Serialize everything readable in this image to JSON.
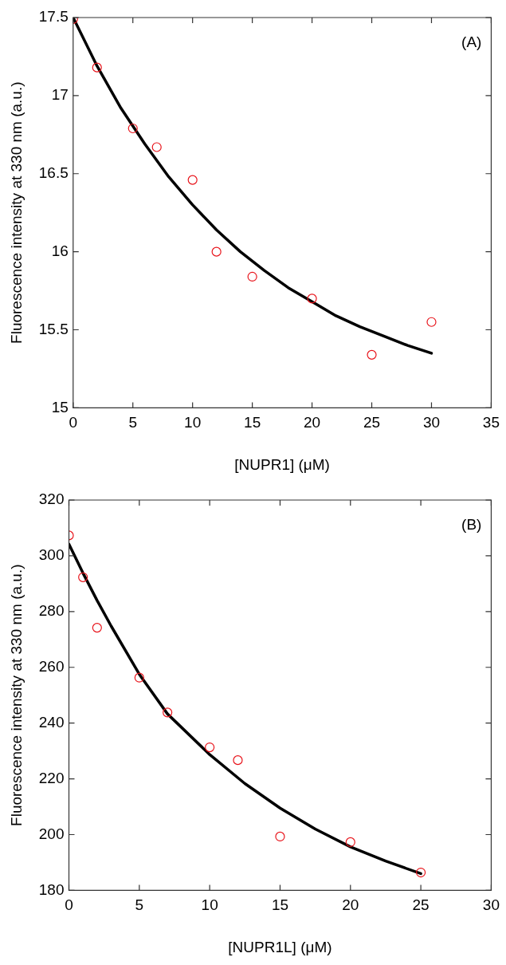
{
  "chart_data": [
    {
      "type": "scatter",
      "xlabel": "[NUPR1] (μM)",
      "ylabel": "Fluorescence intensity at 330 nm (a.u.)",
      "xlim": [
        0,
        35
      ],
      "xticks": [
        0,
        5,
        10,
        15,
        20,
        25,
        30,
        35
      ],
      "ylim": [
        15,
        17.5
      ],
      "yticks": [
        15,
        15.5,
        16,
        16.5,
        17,
        17.5
      ],
      "grid": false,
      "legend": false,
      "annotations": [
        "(A)"
      ],
      "series": [
        {
          "type": "scatter",
          "marker": "circle",
          "color": "#e8141b",
          "x": [
            0,
            2,
            5,
            7,
            10,
            12,
            15,
            20,
            25,
            30
          ],
          "values": [
            17.49,
            17.18,
            16.79,
            16.67,
            16.46,
            16.0,
            15.84,
            15.7,
            15.34,
            15.55
          ]
        },
        {
          "type": "line",
          "marker": "none",
          "line_style": "solid",
          "color": "#000000",
          "x": [
            0,
            2,
            4,
            6,
            8,
            10,
            12,
            14,
            16,
            18,
            20,
            22,
            24,
            26,
            28,
            30
          ],
          "values": [
            17.5,
            17.19,
            16.92,
            16.69,
            16.48,
            16.3,
            16.14,
            16.0,
            15.88,
            15.77,
            15.68,
            15.59,
            15.52,
            15.46,
            15.4,
            15.35
          ]
        }
      ]
    },
    {
      "type": "scatter",
      "xlabel": "[NUPR1L] (μM)",
      "ylabel": "Fluorescence intensity at 330 nm (a.u.)",
      "xlim": [
        0,
        30
      ],
      "xticks": [
        0,
        5,
        10,
        15,
        20,
        25,
        30
      ],
      "ylim": [
        180,
        320
      ],
      "yticks": [
        180,
        200,
        220,
        240,
        260,
        280,
        300,
        320
      ],
      "grid": false,
      "legend": false,
      "annotations": [
        "(B)"
      ],
      "series": [
        {
          "type": "scatter",
          "marker": "circle",
          "color": "#e8141b",
          "x": [
            0,
            1,
            2,
            5,
            7,
            10,
            12,
            15,
            20,
            25
          ],
          "values": [
            307.3,
            292.3,
            274.2,
            256.3,
            243.8,
            231.3,
            226.7,
            199.3,
            197.3,
            186.4
          ]
        },
        {
          "type": "line",
          "marker": "none",
          "line_style": "solid",
          "color": "#000000",
          "x": [
            0,
            1,
            2,
            3,
            5,
            7,
            10,
            12.5,
            15,
            17.5,
            20,
            22.5,
            25
          ],
          "values": [
            304.2,
            293.8,
            284.0,
            274.8,
            257.5,
            243.3,
            228.7,
            218.3,
            209.5,
            202.0,
            195.6,
            190.5,
            186.0
          ]
        }
      ]
    }
  ]
}
